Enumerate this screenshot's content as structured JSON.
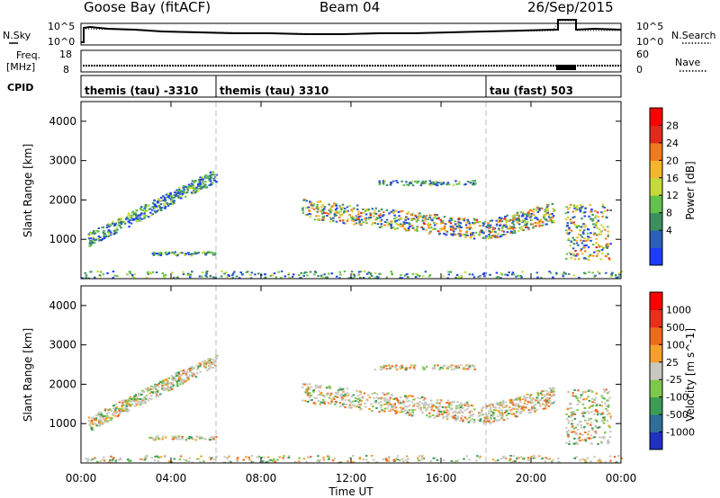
{
  "header": {
    "radar": "Goose Bay (fitACF)",
    "beam": "Beam 04",
    "date": "26/Sep/2015"
  },
  "noise_panel": {
    "left_label": "N.Sky",
    "right_label": "N.Search",
    "left_ticks": [
      "10^5",
      "10^0"
    ],
    "right_ticks": [
      "10^5",
      "10^0"
    ]
  },
  "freq_panel": {
    "label_line1": "Freq.",
    "label_line2": "[MHz]",
    "left_ticks": [
      "18",
      "8"
    ],
    "right_ticks": [
      "60",
      "0"
    ],
    "right_label": "Nave"
  },
  "cpid_panel": {
    "label": "CPID",
    "segments": [
      {
        "name": "themis (tau) -3310",
        "start_hour": 0,
        "end_hour": 6
      },
      {
        "name": "themis (tau) 3310",
        "start_hour": 6,
        "end_hour": 18
      },
      {
        "name": "tau (fast) 503",
        "start_hour": 18,
        "end_hour": 24
      }
    ]
  },
  "chart_data": [
    {
      "type": "heatmap",
      "parameter": "Power",
      "ylabel": "Slant Range [km]",
      "ylim": [
        0,
        4500
      ],
      "yticks": [
        "1000",
        "2000",
        "3000",
        "4000"
      ],
      "xlim_hours": [
        0,
        24
      ],
      "colorbar_label": "Power [dB]",
      "colorbar_ticks": [
        "4",
        "8",
        "12",
        "16",
        "20",
        "24",
        "28"
      ],
      "colorbar_colors": [
        "#1e3cff",
        "#2b5fb8",
        "#3b8f5e",
        "#62c24c",
        "#c6d93a",
        "#f5b62b",
        "#f07b1e",
        "#e02a1b",
        "#ff0000"
      ]
    },
    {
      "type": "heatmap",
      "parameter": "Velocity",
      "ylabel": "Slant Range [km]",
      "ylim": [
        0,
        4500
      ],
      "yticks": [
        "1000",
        "2000",
        "3000",
        "4000"
      ],
      "xlim_hours": [
        0,
        24
      ],
      "colorbar_label": "Velocity [m s^-1]",
      "colorbar_ticks": [
        "1000",
        "500",
        "100",
        "25",
        "-25",
        "-100",
        "-500",
        "-1000"
      ],
      "colorbar_colors": [
        "#2030c0",
        "#2e6e99",
        "#3c9b55",
        "#7cc84a",
        "#c8c8c0",
        "#f5a02b",
        "#f06a1e",
        "#e8301b",
        "#ff0000"
      ]
    }
  ],
  "xaxis": {
    "label": "Time UT",
    "ticks": [
      "00:00",
      "04:00",
      "08:00",
      "12:00",
      "16:00",
      "20:00",
      "00:00"
    ],
    "tick_hours": [
      0,
      4,
      8,
      12,
      16,
      20,
      24
    ]
  }
}
